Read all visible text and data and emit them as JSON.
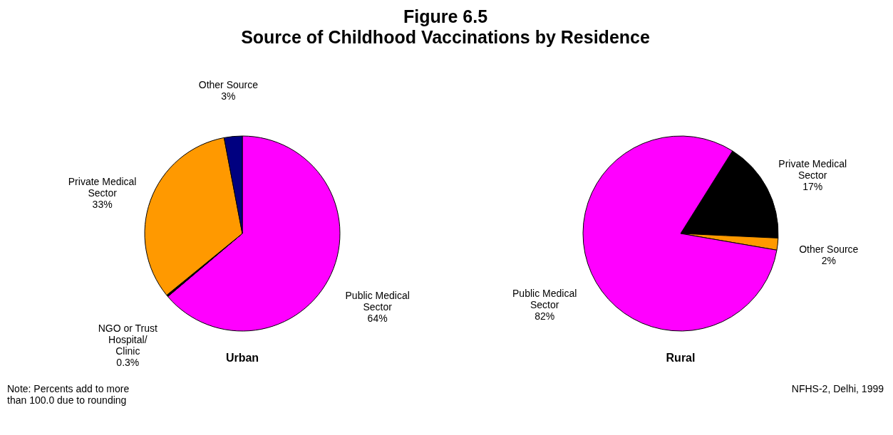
{
  "chart_data": [
    {
      "type": "pie",
      "title": "Figure 6.5",
      "subtitle": "Source of Childhood Vaccinations by Residence",
      "xlabel": "Urban",
      "categories": [
        "Public Medical Sector",
        "NGO or Trust Hospital/ Clinic",
        "Private Medical Sector",
        "Other Source"
      ],
      "values": [
        64,
        0.3,
        33,
        3
      ],
      "value_labels": [
        "64%",
        "0.3%",
        "33%",
        "3%"
      ],
      "colors": [
        "#ff00ff",
        "#000000",
        "#ff9900",
        "#000080"
      ],
      "annotations": [
        "Note: Percents add to more than 100.0 due to rounding"
      ]
    },
    {
      "type": "pie",
      "xlabel": "Rural",
      "categories": [
        "Private Medical Sector",
        "Other Source",
        "Public Medical Sector"
      ],
      "values": [
        17,
        2,
        82
      ],
      "value_labels": [
        "17%",
        "2%",
        "82%"
      ],
      "colors": [
        "#000000",
        "#ff9900",
        "#ff00ff"
      ],
      "annotations": [
        "NFHS-2, Delhi, 1999"
      ]
    }
  ]
}
